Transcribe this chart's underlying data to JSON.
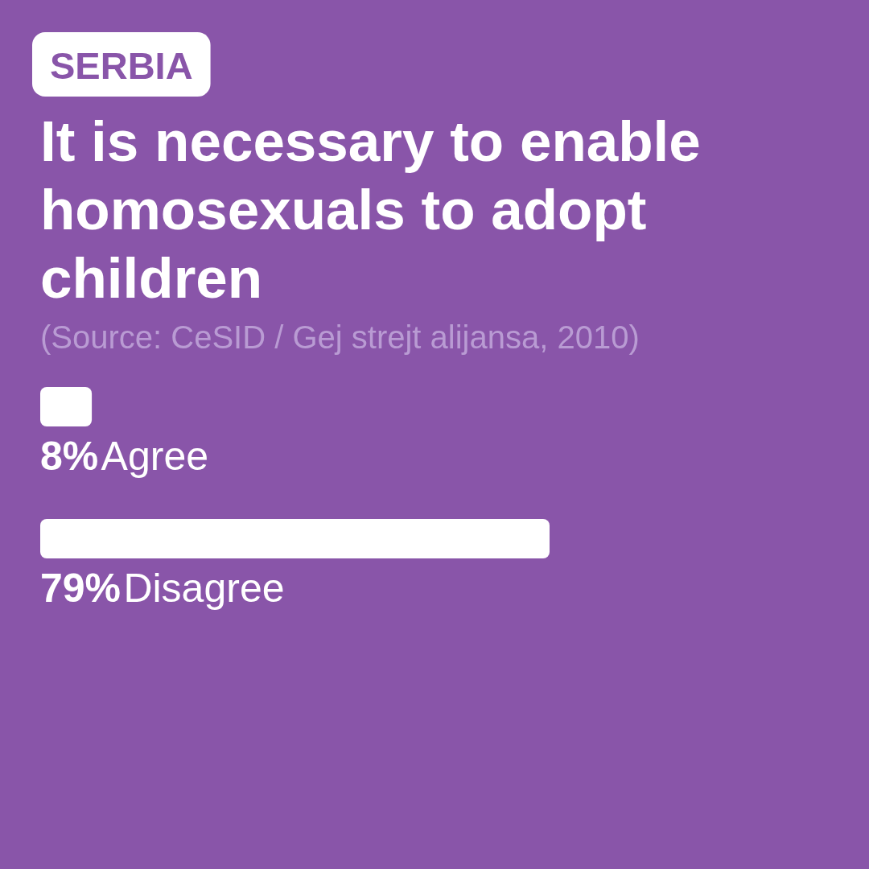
{
  "chart_data": {
    "type": "bar",
    "orientation": "horizontal",
    "title": "It is necessary to enable homosexuals to adopt children",
    "subtitle": "SERBIA",
    "annotations": [
      "(Source: CeSID / Gej strejt alijansa, 2010)"
    ],
    "categories": [
      "Agree",
      "Disagree"
    ],
    "values": [
      8,
      79
    ],
    "color": "#ffffff",
    "value_labels": [
      "8%",
      "79%"
    ]
  }
}
